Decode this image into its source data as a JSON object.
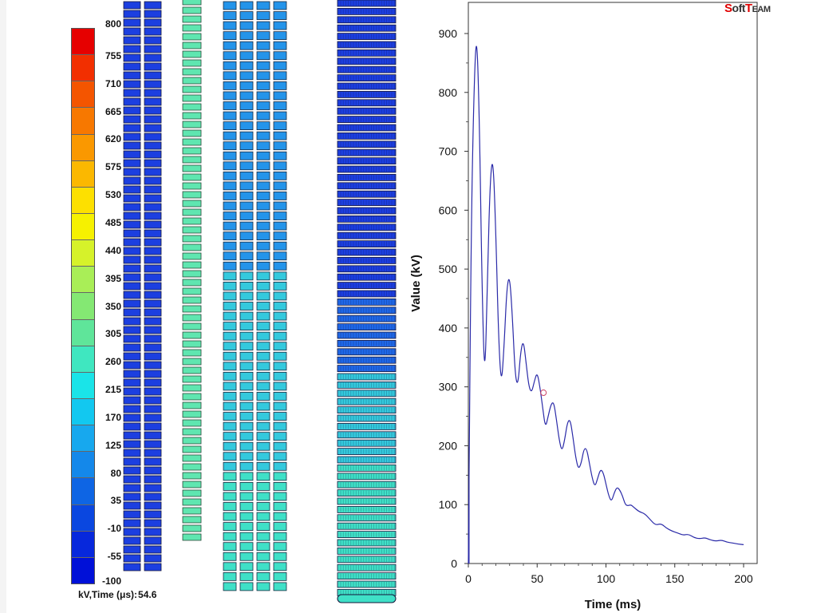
{
  "colorbar": {
    "labels": [
      "800",
      "755",
      "710",
      "665",
      "620",
      "575",
      "530",
      "485",
      "440",
      "395",
      "350",
      "305",
      "260",
      "215",
      "170",
      "125",
      "80",
      "35",
      "-10",
      "-55",
      "-100"
    ],
    "colors": [
      "#e60000",
      "#f22f00",
      "#f45500",
      "#f77800",
      "#fa9800",
      "#fbb800",
      "#fde000",
      "#f6f100",
      "#d6f22a",
      "#a9ee57",
      "#84e873",
      "#5fe59a",
      "#3fe7c0",
      "#1ae4e8",
      "#12c8f0",
      "#17a8ee",
      "#1488ea",
      "#0e65e4",
      "#0a47e0",
      "#0728dc",
      "#0010d8"
    ],
    "caption_prefix": "kV,Time (μs):",
    "caption_value": "54.6"
  },
  "brand": {
    "part1": "S",
    "part2": "oft",
    "part3": "T",
    "part4": "EAM"
  },
  "winding_colors": {
    "dark_blue": "#1c3fe0",
    "mid_blue": "#1f68e8",
    "light_blue": "#2494ea",
    "cyan": "#34c9dd",
    "aqua": "#3fe0c7",
    "mint": "#5fe6b0"
  },
  "chart_data": {
    "type": "line",
    "title": "",
    "xlabel": "Time (ms)",
    "ylabel": "Value (kV)",
    "xlim": [
      0,
      210
    ],
    "ylim": [
      0,
      950
    ],
    "xticks": [
      0,
      50,
      100,
      150,
      200
    ],
    "yticks": [
      0,
      100,
      200,
      300,
      400,
      500,
      600,
      700,
      800,
      900
    ],
    "grid": false,
    "series": [
      {
        "color": "#2a2aa8",
        "x": [
          0,
          2,
          4,
          6,
          8,
          10,
          12,
          14,
          16,
          18,
          20,
          22,
          24,
          26,
          28,
          30,
          32,
          34,
          36,
          38,
          40,
          42,
          44,
          46,
          48,
          50,
          52,
          54,
          56,
          58,
          60,
          62,
          64,
          66,
          68,
          70,
          72,
          74,
          76,
          78,
          80,
          82,
          84,
          86,
          88,
          90,
          92,
          94,
          96,
          98,
          100,
          102,
          104,
          106,
          108,
          110,
          112,
          114,
          116,
          118,
          120,
          124,
          128,
          132,
          136,
          140,
          144,
          148,
          152,
          156,
          160,
          164,
          168,
          172,
          176,
          180,
          184,
          188,
          192,
          196,
          200
        ],
        "y": [
          0,
          560,
          800,
          910,
          760,
          460,
          300,
          500,
          660,
          690,
          560,
          380,
          300,
          370,
          470,
          490,
          420,
          320,
          300,
          360,
          380,
          340,
          300,
          290,
          310,
          325,
          300,
          265,
          230,
          250,
          270,
          275,
          245,
          210,
          190,
          210,
          240,
          245,
          215,
          180,
          160,
          170,
          195,
          195,
          170,
          145,
          130,
          145,
          160,
          155,
          135,
          115,
          105,
          120,
          130,
          125,
          115,
          100,
          98,
          100,
          96,
          88,
          85,
          75,
          65,
          68,
          60,
          55,
          52,
          48,
          50,
          44,
          42,
          44,
          40,
          38,
          40,
          36,
          35,
          33,
          32
        ]
      }
    ]
  }
}
